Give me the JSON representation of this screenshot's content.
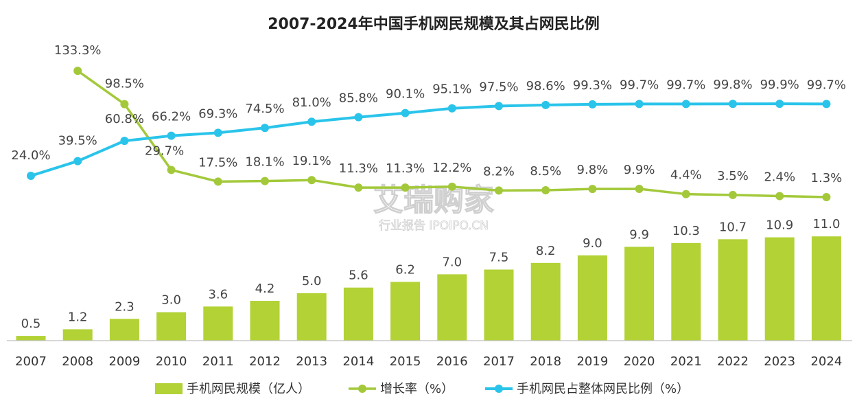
{
  "chart_data": {
    "type": "bar",
    "title": "2007-2024年中国手机网民规模及其占网民比例",
    "categories": [
      "2007",
      "2008",
      "2009",
      "2010",
      "2011",
      "2012",
      "2013",
      "2014",
      "2015",
      "2016",
      "2017",
      "2018",
      "2019",
      "2020",
      "2021",
      "2022",
      "2023",
      "2024"
    ],
    "series": [
      {
        "name": "手机网民规模（亿人）",
        "type": "bar",
        "color": "#b2d235",
        "values": [
          0.5,
          1.2,
          2.3,
          3.0,
          3.6,
          4.2,
          5.0,
          5.6,
          6.2,
          7.0,
          7.5,
          8.2,
          9.0,
          9.9,
          10.3,
          10.7,
          10.9,
          11.0
        ],
        "labels": [
          "0.5",
          "1.2",
          "2.3",
          "3.0",
          "3.6",
          "4.2",
          "5.0",
          "5.6",
          "6.2",
          "7.0",
          "7.5",
          "8.2",
          "9.0",
          "9.9",
          "10.3",
          "10.7",
          "10.9",
          "11.0"
        ]
      },
      {
        "name": "增长率（%）",
        "type": "line",
        "color": "#a3c93a",
        "values": [
          null,
          133.3,
          98.5,
          29.7,
          17.5,
          18.1,
          19.1,
          11.3,
          11.3,
          12.2,
          8.2,
          8.5,
          9.8,
          9.9,
          4.4,
          3.5,
          2.4,
          1.3
        ],
        "labels": [
          null,
          "133.3%",
          "98.5%",
          "29.7%",
          "17.5%",
          "18.1%",
          "19.1%",
          "11.3%",
          "11.3%",
          "12.2%",
          "8.2%",
          "8.5%",
          "9.8%",
          "9.9%",
          "4.4%",
          "3.5%",
          "2.4%",
          "1.3%"
        ]
      },
      {
        "name": "手机网民占整体网民比例（%）",
        "type": "line",
        "color": "#2ac4ea",
        "values": [
          24.0,
          39.5,
          60.8,
          66.2,
          69.3,
          74.5,
          81.0,
          85.8,
          90.1,
          95.1,
          97.5,
          98.6,
          99.3,
          99.7,
          99.7,
          99.8,
          99.9,
          99.7
        ],
        "labels": [
          "24.0%",
          "39.5%",
          "60.8%",
          "66.2%",
          "69.3%",
          "74.5%",
          "81.0%",
          "85.8%",
          "90.1%",
          "95.1%",
          "97.5%",
          "98.6%",
          "99.3%",
          "99.7%",
          "99.7%",
          "99.8%",
          "99.9%",
          "99.7%"
        ]
      }
    ],
    "legend_position": "bottom",
    "grid": false
  },
  "watermark": {
    "main": "艾瑞购家",
    "sub": "行业报告 IPOIPO.CN"
  }
}
